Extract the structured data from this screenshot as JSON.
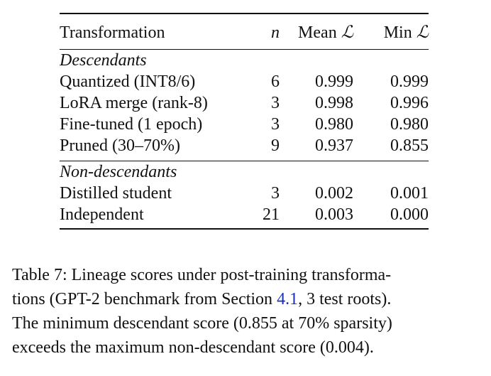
{
  "table": {
    "headers": {
      "transformation": "Transformation",
      "n": "n",
      "mean_prefix": "Mean",
      "min_prefix": "Min",
      "loss_symbol": "ℒ"
    },
    "groups": [
      {
        "label": "Descendants",
        "rows": [
          {
            "name": "Quantized (INT8/6)",
            "n": "6",
            "mean": "0.999",
            "min": "0.999"
          },
          {
            "name": "LoRA merge (rank-8)",
            "n": "3",
            "mean": "0.998",
            "min": "0.996"
          },
          {
            "name": "Fine-tuned (1 epoch)",
            "n": "3",
            "mean": "0.980",
            "min": "0.980"
          },
          {
            "name": "Pruned (30–70%)",
            "n": "9",
            "mean": "0.937",
            "min": "0.855"
          }
        ]
      },
      {
        "label": "Non-descendants",
        "rows": [
          {
            "name": "Distilled student",
            "n": "3",
            "mean": "0.002",
            "min": "0.001"
          },
          {
            "name": "Independent",
            "n": "21",
            "mean": "0.003",
            "min": "0.000"
          }
        ]
      }
    ]
  },
  "caption": {
    "line1": "Table 7: Lineage scores under post-training transforma-",
    "line2_a": "tions (GPT-2 benchmark from Section ",
    "line2_ref": "4.1",
    "line2_b": ", 3 test roots).",
    "line3": "The minimum descendant score (0.855 at 70% sparsity)",
    "line4": "exceeds the maximum non-descendant score (0.004)."
  },
  "colors": {
    "text": "#111111",
    "link": "#1a2fb8"
  }
}
